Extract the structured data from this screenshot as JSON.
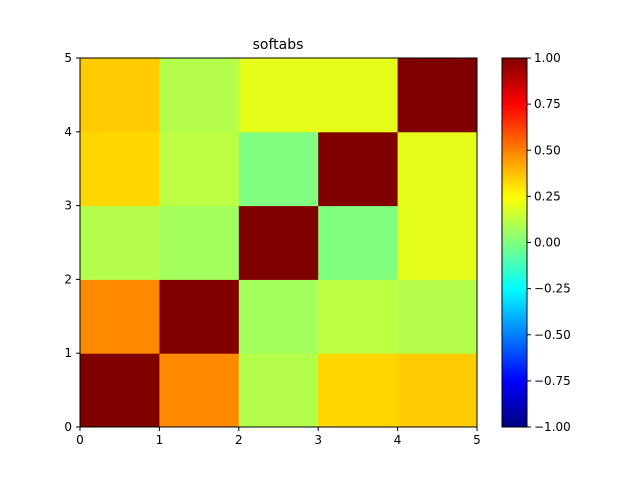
{
  "chart_data": {
    "type": "heatmap",
    "title": "softabs",
    "x_edges": [
      0,
      1,
      2,
      3,
      4,
      5
    ],
    "y_edges": [
      0,
      1,
      2,
      3,
      4,
      5
    ],
    "x_ticks": [
      "0",
      "1",
      "2",
      "3",
      "4",
      "5"
    ],
    "y_ticks": [
      "0",
      "1",
      "2",
      "3",
      "4",
      "5"
    ],
    "xlim": [
      0,
      5
    ],
    "ylim": [
      0,
      5
    ],
    "colormap": "jet",
    "clim": [
      -1.0,
      1.0
    ],
    "colorbar_ticks": [
      "1.00",
      "0.75",
      "0.50",
      "0.25",
      "0.00",
      "−0.25",
      "−0.50",
      "−0.75",
      "−1.00"
    ],
    "colorbar_tick_values": [
      1.0,
      0.75,
      0.5,
      0.25,
      0.0,
      -0.25,
      -0.5,
      -0.75,
      -1.0
    ],
    "grid": false,
    "legend": "colorbar-right",
    "matrix_rows_bottom_to_top": [
      [
        1.0,
        0.48,
        0.1,
        0.33,
        0.35
      ],
      [
        0.48,
        1.0,
        0.07,
        0.12,
        0.1
      ],
      [
        0.1,
        0.07,
        1.0,
        0.0,
        0.2
      ],
      [
        0.33,
        0.12,
        0.0,
        1.0,
        0.2
      ],
      [
        0.35,
        0.1,
        0.2,
        0.2,
        1.0
      ]
    ]
  }
}
